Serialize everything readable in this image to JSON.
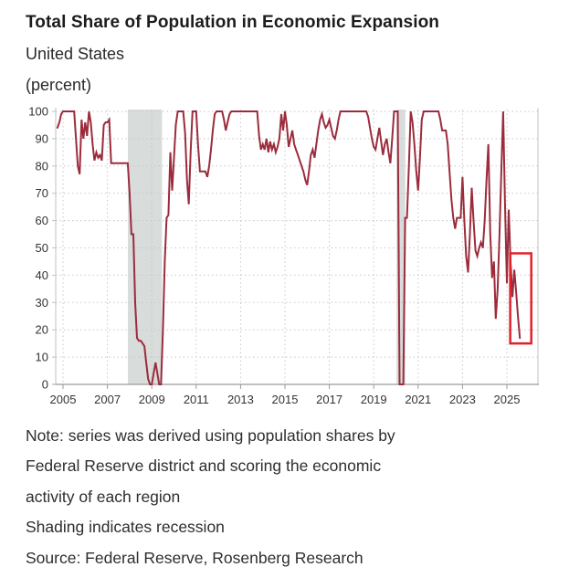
{
  "header": {
    "title": "Total Share of Population in Economic Expansion",
    "subtitle": "United States",
    "units": "(percent)"
  },
  "notes": {
    "line1": "Note: series was derived using population shares by",
    "line2": "Federal Reserve district and scoring the economic",
    "line3": "activity of each region",
    "line4": "Shading indicates recession",
    "line5": "Source: Federal Reserve, Rosenberg Research"
  },
  "chart_data": {
    "type": "line",
    "title": "Total Share of Population in Economic Expansion",
    "series_name": "Total share of population in economic expansion",
    "xlabel": "",
    "ylabel": "percent",
    "x_ticks": [
      2005,
      2007,
      2009,
      2011,
      2013,
      2015,
      2017,
      2019,
      2021,
      2023,
      2025
    ],
    "y_ticks": [
      0,
      10,
      20,
      30,
      40,
      50,
      60,
      70,
      80,
      90,
      100
    ],
    "x_range": [
      2004.67,
      2026.4
    ],
    "y_range": [
      0,
      100
    ],
    "grid": "dotted",
    "x_start": 2004.75,
    "x_step_years": 0.0833333,
    "values": [
      94,
      96,
      99,
      100,
      100,
      100,
      100,
      100,
      100,
      100,
      90,
      80,
      77,
      97,
      90,
      96,
      91,
      100,
      96,
      88,
      82,
      85,
      83,
      84,
      82,
      95,
      96,
      96,
      97,
      81,
      81,
      81,
      81,
      81,
      81,
      81,
      81,
      81,
      81,
      70,
      55,
      55,
      30,
      17,
      16,
      16,
      15,
      14,
      8,
      2,
      0,
      0,
      4,
      8,
      4,
      0,
      0,
      20,
      45,
      61,
      62,
      85,
      71,
      83,
      95,
      100,
      100,
      100,
      100,
      92,
      75,
      66,
      85,
      100,
      100,
      100,
      88,
      78,
      78,
      78,
      78,
      76,
      80,
      86,
      93,
      99,
      100,
      100,
      100,
      100,
      97,
      93,
      96,
      99,
      100,
      100,
      100,
      100,
      100,
      100,
      100,
      100,
      100,
      100,
      100,
      100,
      100,
      100,
      100,
      91,
      86,
      88,
      86,
      90,
      85,
      89,
      86,
      88,
      85,
      87,
      90,
      99,
      93,
      100,
      95,
      87,
      90,
      93,
      88,
      86,
      84,
      82,
      80,
      78,
      75,
      73,
      78,
      84,
      86,
      83,
      88,
      93,
      97,
      99,
      96,
      94,
      95,
      97,
      94,
      91,
      90,
      93,
      97,
      100,
      100,
      100,
      100,
      100,
      100,
      100,
      100,
      100,
      100,
      100,
      100,
      100,
      100,
      100,
      98,
      94,
      90,
      87,
      86,
      90,
      94,
      89,
      84,
      88,
      90,
      85,
      81,
      90,
      100,
      100,
      100,
      0,
      0,
      0,
      61,
      61,
      80,
      100,
      96,
      88,
      78,
      71,
      83,
      97,
      100,
      100,
      100,
      100,
      100,
      100,
      100,
      100,
      100,
      97,
      93,
      93,
      93,
      88,
      78,
      68,
      61,
      57,
      61,
      61,
      61,
      76,
      60,
      47,
      41,
      55,
      72,
      60,
      49,
      47,
      50,
      52,
      50,
      60,
      75,
      88,
      55,
      39,
      45,
      24,
      35,
      55,
      78,
      100,
      65,
      37,
      64,
      45,
      32,
      42,
      34,
      25,
      17
    ],
    "recession_bands": [
      [
        2007.92,
        2009.46
      ],
      [
        2020.03,
        2020.42
      ]
    ],
    "annotation_box": {
      "x": [
        2025.15,
        2026.1
      ],
      "y": [
        15,
        48
      ]
    },
    "colors": {
      "line": "#9b2c3c",
      "recession_band": "#d8dcdb",
      "annotation_box": "#e1222a",
      "gridline": "#c7c7c7",
      "axis": "#9a9a9a",
      "border": "#c2c2c2",
      "tick_label": "#333333"
    },
    "legend": "none"
  }
}
